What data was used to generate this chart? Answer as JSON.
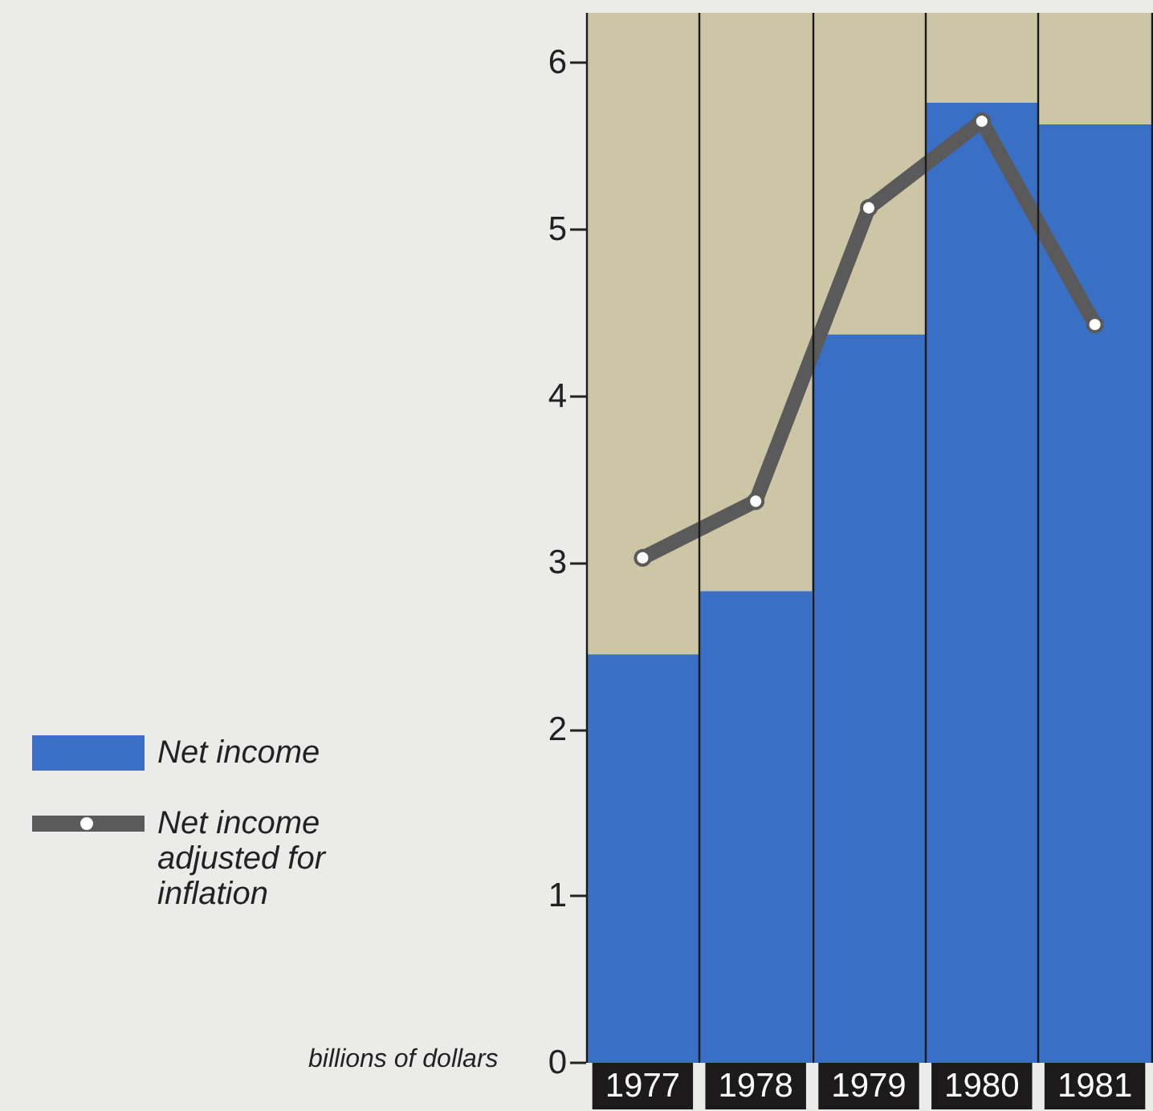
{
  "chart_data": {
    "type": "bar",
    "ylabel": "billions of dollars",
    "categories": [
      "1977",
      "1978",
      "1979",
      "1980",
      "1981"
    ],
    "series": [
      {
        "name": "Net income",
        "color": "#3a6fc6",
        "values": [
          2.45,
          2.83,
          4.37,
          5.76,
          5.63
        ]
      },
      {
        "name": "Net income adjusted for inflation",
        "type": "line",
        "color": "#5a5a5a",
        "values": [
          3.03,
          3.37,
          5.13,
          5.65,
          4.43
        ]
      }
    ],
    "ylim": [
      0,
      6.3
    ],
    "yticks": [
      0,
      1,
      2,
      3,
      4,
      5,
      6
    ],
    "grid": "x",
    "bands": [
      {
        "axis": "y",
        "from": 0,
        "to": 6.3,
        "color": "#ccc6a6"
      }
    ],
    "legend": "left",
    "marker": "circle",
    "line_style": "solid"
  }
}
